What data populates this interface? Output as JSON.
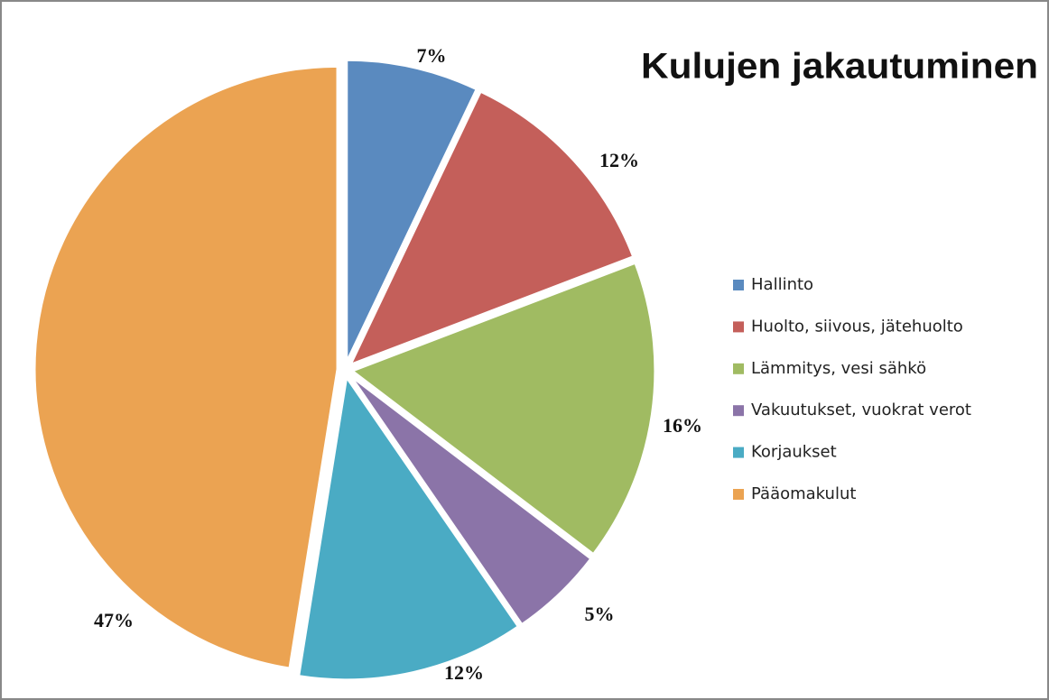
{
  "chart_data": {
    "type": "pie",
    "title": "Kulujen jakautuminen",
    "categories": [
      "Hallinto",
      "Huolto, siivous, jätehuolto",
      "Lämmitys, vesi sähkö",
      "Vakuutukset, vuokrat verot",
      "Korjaukset",
      "Pääomakulut"
    ],
    "values": [
      7,
      12,
      16,
      5,
      12,
      47
    ],
    "value_labels": [
      "7%",
      "12%",
      "16%",
      "5%",
      "12%",
      "47%"
    ],
    "colors": [
      "#5a8abf",
      "#c45f5a",
      "#a0bb62",
      "#8b74a8",
      "#4aabc4",
      "#eba352"
    ],
    "legend": "right"
  }
}
